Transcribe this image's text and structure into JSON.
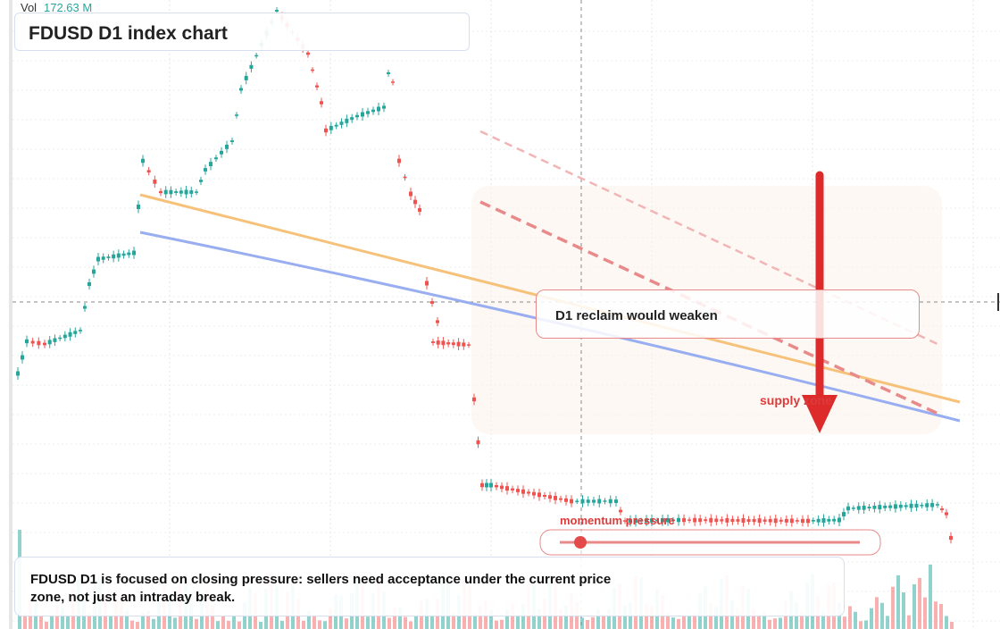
{
  "header": {
    "vol_label": "Vol",
    "vol_value": "172.63 M",
    "title": "FDUSD D1 index chart"
  },
  "annotations": {
    "callout": "D1 reclaim would weaken",
    "zone": "supply zone",
    "slider": "momentum pressure"
  },
  "footer": {
    "text": "FDUSD D1 is focused on closing pressure: sellers need acceptance under the current price zone, not just an intraday break."
  }
}
